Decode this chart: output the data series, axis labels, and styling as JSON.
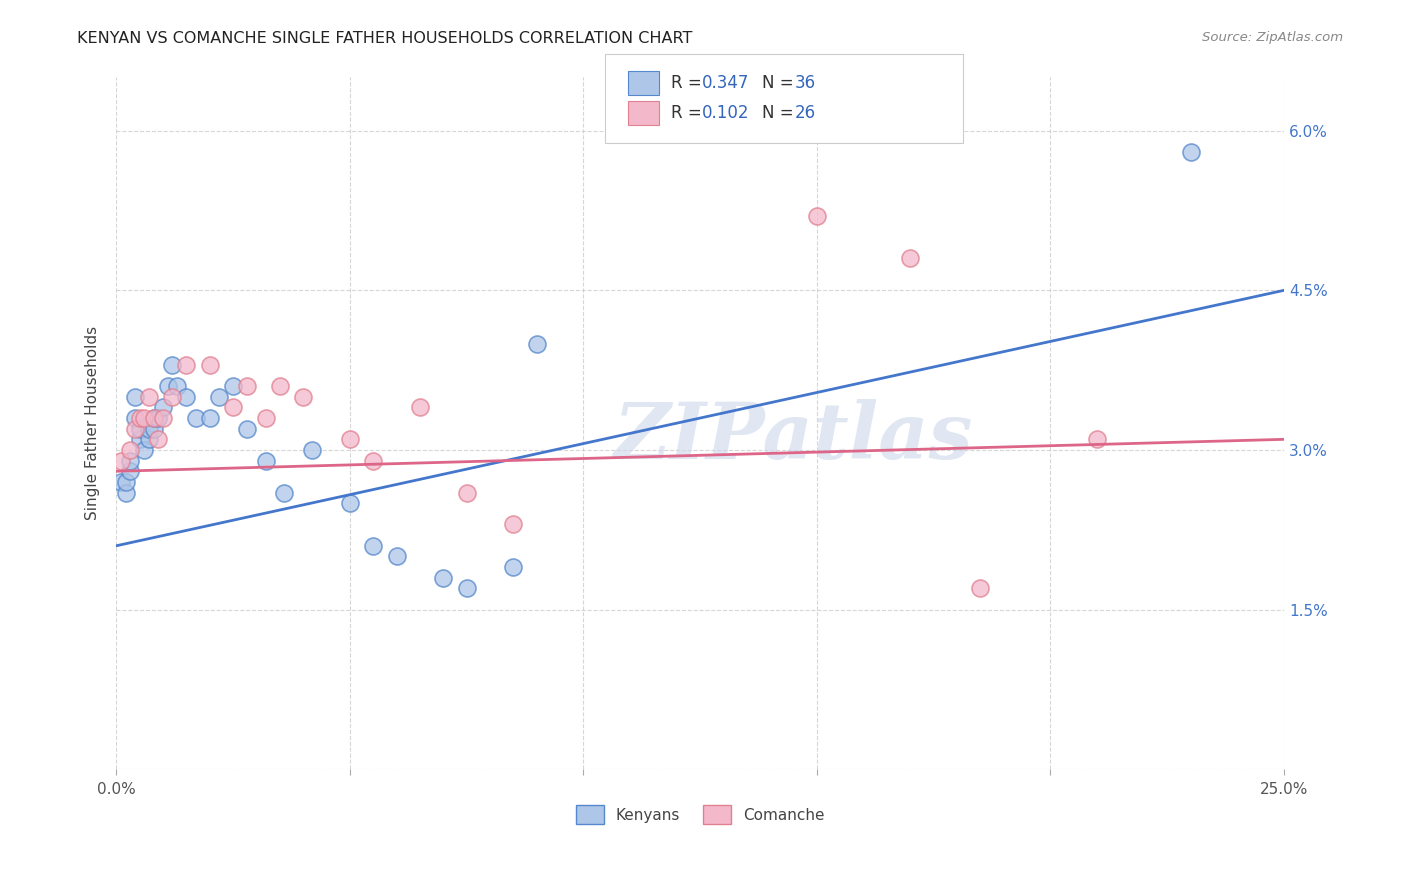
{
  "title": "KENYAN VS COMANCHE SINGLE FATHER HOUSEHOLDS CORRELATION CHART",
  "source": "Source: ZipAtlas.com",
  "ylabel_label": "Single Father Households",
  "xlim": [
    0.0,
    0.25
  ],
  "ylim": [
    0.0,
    0.065
  ],
  "xticks": [
    0.0,
    0.05,
    0.1,
    0.15,
    0.2,
    0.25
  ],
  "xticklabels": [
    "0.0%",
    "",
    "",
    "",
    "",
    "25.0%"
  ],
  "yticks": [
    0.0,
    0.015,
    0.03,
    0.045,
    0.06
  ],
  "yticklabels": [
    "",
    "1.5%",
    "3.0%",
    "4.5%",
    "6.0%"
  ],
  "blue_R": 0.347,
  "blue_N": 36,
  "pink_R": 0.102,
  "pink_N": 26,
  "blue_fill": "#aec6e8",
  "pink_fill": "#f4b8cb",
  "blue_edge": "#5588cc",
  "pink_edge": "#e08090",
  "blue_line": "#4477cc",
  "pink_line": "#dd6688",
  "legend_text_color": "#3366bb",
  "watermark": "ZIPatlas",
  "blue_x": [
    0.001,
    0.002,
    0.002,
    0.003,
    0.003,
    0.004,
    0.004,
    0.005,
    0.005,
    0.006,
    0.007,
    0.007,
    0.008,
    0.008,
    0.009,
    0.01,
    0.011,
    0.012,
    0.013,
    0.015,
    0.017,
    0.02,
    0.022,
    0.025,
    0.028,
    0.032,
    0.036,
    0.042,
    0.05,
    0.055,
    0.06,
    0.07,
    0.075,
    0.085,
    0.09,
    0.23
  ],
  "blue_y": [
    0.027,
    0.026,
    0.027,
    0.028,
    0.029,
    0.033,
    0.035,
    0.031,
    0.032,
    0.03,
    0.031,
    0.032,
    0.032,
    0.033,
    0.033,
    0.034,
    0.036,
    0.038,
    0.036,
    0.035,
    0.033,
    0.033,
    0.035,
    0.036,
    0.032,
    0.029,
    0.026,
    0.03,
    0.025,
    0.021,
    0.02,
    0.018,
    0.017,
    0.019,
    0.04,
    0.058
  ],
  "pink_x": [
    0.001,
    0.003,
    0.004,
    0.005,
    0.006,
    0.007,
    0.008,
    0.009,
    0.01,
    0.012,
    0.015,
    0.02,
    0.025,
    0.028,
    0.032,
    0.035,
    0.04,
    0.05,
    0.055,
    0.065,
    0.075,
    0.085,
    0.15,
    0.17,
    0.185,
    0.21
  ],
  "pink_y": [
    0.029,
    0.03,
    0.032,
    0.033,
    0.033,
    0.035,
    0.033,
    0.031,
    0.033,
    0.035,
    0.038,
    0.038,
    0.034,
    0.036,
    0.033,
    0.036,
    0.035,
    0.031,
    0.029,
    0.034,
    0.026,
    0.023,
    0.052,
    0.048,
    0.017,
    0.031
  ],
  "blue_line_x0": 0.0,
  "blue_line_x1": 0.25,
  "blue_line_y0": 0.021,
  "blue_line_y1": 0.045,
  "pink_line_x0": 0.0,
  "pink_line_x1": 0.25,
  "pink_line_y0": 0.028,
  "pink_line_y1": 0.031
}
